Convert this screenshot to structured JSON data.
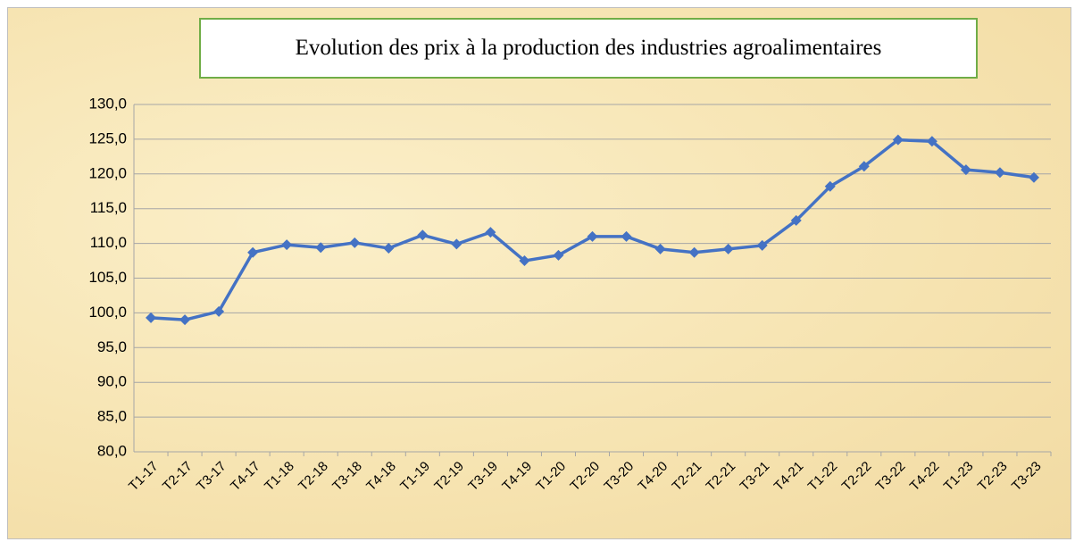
{
  "chart_data": {
    "type": "line",
    "title": "Evolution des prix à la production des industries agroalimentaires",
    "categories": [
      "T1-17",
      "T2-17",
      "T3-17",
      "T4-17",
      "T1-18",
      "T2-18",
      "T3-18",
      "T4-18",
      "T1-19",
      "T2-19",
      "T3-19",
      "T4-19",
      "T1-20",
      "T2-20",
      "T3-20",
      "T4-20",
      "T2-21",
      "T2-21",
      "T3-21",
      "T4-21",
      "T1-22",
      "T2-22",
      "T3-22",
      "T4-22",
      "T1-23",
      "T2-23",
      "T3-23"
    ],
    "values": [
      99.3,
      99.0,
      100.2,
      108.7,
      109.8,
      109.4,
      110.1,
      109.3,
      111.2,
      109.9,
      111.6,
      107.5,
      108.3,
      111.0,
      111.0,
      109.2,
      108.7,
      109.2,
      109.7,
      113.3,
      118.2,
      121.1,
      124.9,
      124.7,
      120.6,
      120.2,
      119.5
    ],
    "color": "#4472c4",
    "ylim": [
      80,
      130
    ],
    "yticks": [
      {
        "value": 80,
        "label": "80,0"
      },
      {
        "value": 85,
        "label": "85,0"
      },
      {
        "value": 90,
        "label": "90,0"
      },
      {
        "value": 95,
        "label": "95,0"
      },
      {
        "value": 100,
        "label": "100,0"
      },
      {
        "value": 105,
        "label": "105,0"
      },
      {
        "value": 110,
        "label": "110,0"
      },
      {
        "value": 115,
        "label": "115,0"
      },
      {
        "value": 120,
        "label": "120,0"
      },
      {
        "value": 125,
        "label": "125,0"
      },
      {
        "value": 130,
        "label": "130,0"
      }
    ],
    "grid": true
  }
}
